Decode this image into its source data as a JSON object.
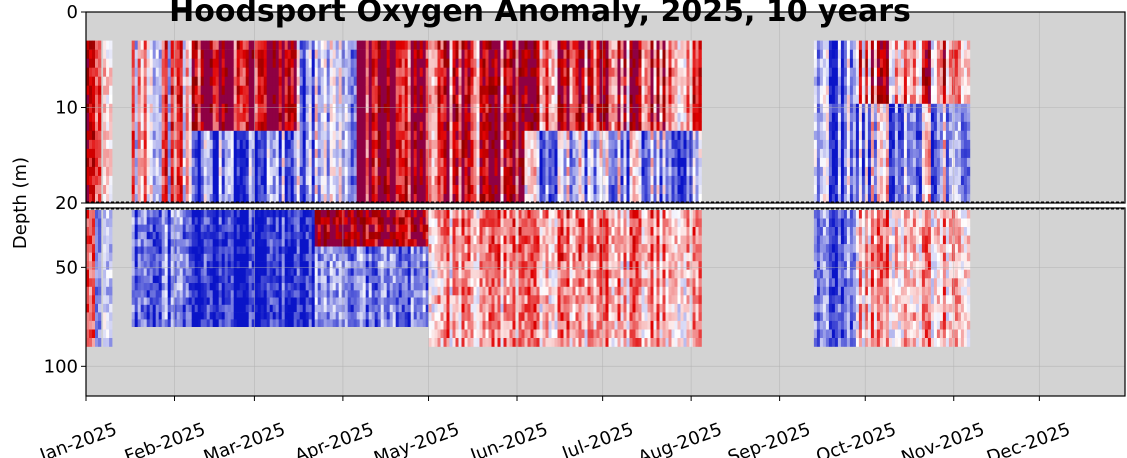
{
  "chart_data": {
    "type": "heatmap",
    "title": "Hoodsport Oxygen Anomaly, 2025, 10 years",
    "xlabel": "",
    "ylabel": "Depth (m)",
    "x_tick_labels": [
      "Jan-2025",
      "Feb-2025",
      "Mar-2025",
      "Apr-2025",
      "May-2025",
      "Jun-2025",
      "Jul-2025",
      "Aug-2025",
      "Sep-2025",
      "Oct-2025",
      "Nov-2025",
      "Dec-2025"
    ],
    "x_tick_dates": [
      "2025-01-01",
      "2025-02-01",
      "2025-03-01",
      "2025-04-01",
      "2025-05-01",
      "2025-06-01",
      "2025-07-01",
      "2025-08-01",
      "2025-09-01",
      "2025-10-01",
      "2025-11-01",
      "2025-12-01"
    ],
    "xlim": [
      "2025-01-01",
      "2025-12-31"
    ],
    "upper_panel": {
      "ylim": [
        0,
        20
      ],
      "y_ticks": [
        0,
        10,
        20
      ],
      "y_tick_labels": [
        "0",
        "10",
        "20"
      ]
    },
    "lower_panel": {
      "ylim": [
        20,
        115
      ],
      "y_ticks": [
        50,
        100
      ],
      "y_tick_labels": [
        "50",
        "100"
      ]
    },
    "split_depth_m": 20,
    "grid": true,
    "colormap": {
      "negative": "#0a14c8",
      "zero": "#ffffff",
      "positive": "#e00000",
      "extreme_positive": "#8b0000",
      "over_range": "#900060"
    },
    "no_data_color": "#d3d3d3",
    "data_segments": [
      {
        "start": "2025-01-01",
        "end": "2025-01-06",
        "depth_top_m": 3,
        "depth_bottom_m": 90,
        "pattern": "red near surface, blue at depth"
      },
      {
        "start": "2025-01-07",
        "end": "2025-01-10",
        "depth_top_m": 3,
        "depth_bottom_m": 90,
        "pattern": "mostly blue"
      },
      {
        "start": "2025-01-17",
        "end": "2025-05-01",
        "depth_top_m": 3,
        "depth_bottom_m": 80,
        "pattern": "mixed strong positive and negative anomalies; deep water negative"
      },
      {
        "start": "2025-05-01",
        "end": "2025-08-04",
        "depth_top_m": 3,
        "depth_bottom_m": 90,
        "pattern": "upper water mixed red/blue, deep water weakly positive"
      },
      {
        "start": "2025-09-13",
        "end": "2025-11-06",
        "depth_top_m": 3,
        "depth_bottom_m": 90,
        "pattern": "upper water mostly negative, deep water weakly positive"
      }
    ]
  }
}
